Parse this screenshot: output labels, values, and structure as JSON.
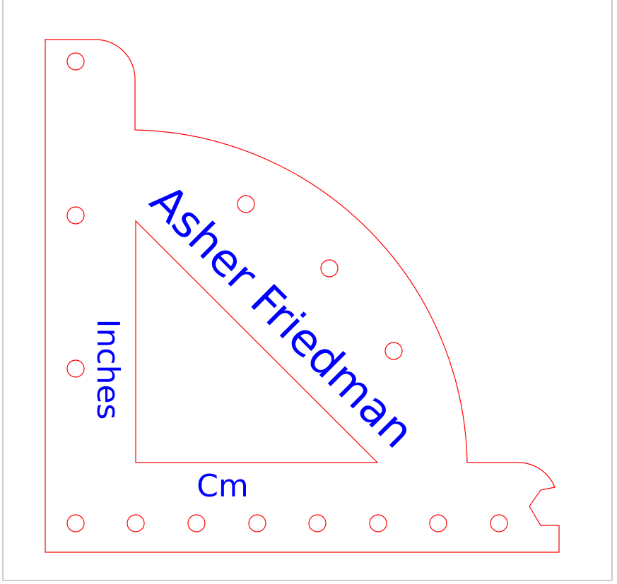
{
  "drawing": {
    "name_text": "Asher Friedman",
    "inches_text": "Inches",
    "cm_text": "Cm",
    "cut_color": "#ff0000",
    "engrave_color": "#0000ff",
    "frame_color": "#9a9a9a",
    "hole_count_left_column": 3,
    "hole_count_bottom_row": 8,
    "hole_count_arc": 3
  }
}
